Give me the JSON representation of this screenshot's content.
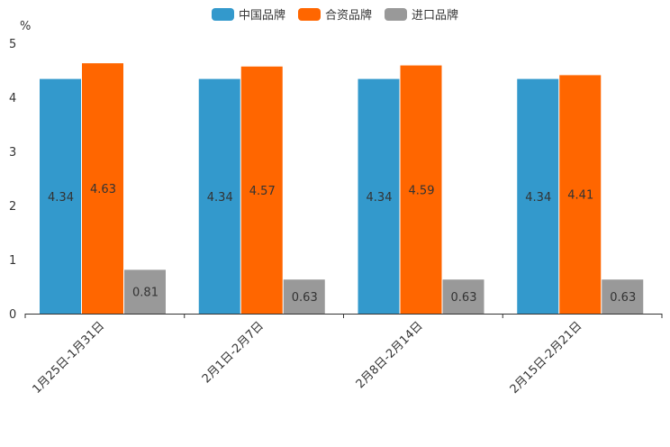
{
  "chart_data": {
    "type": "bar",
    "unit_label": "%",
    "categories": [
      "1月25日-1月31日",
      "2月1日-2月7日",
      "2月8日-2月14日",
      "2月15日-2月21日"
    ],
    "series": [
      {
        "name": "中国品牌",
        "color": "#3399cc",
        "values": [
          4.34,
          4.34,
          4.34,
          4.34
        ],
        "labels": [
          "4.34",
          "4.34",
          "4.34",
          "4.34"
        ]
      },
      {
        "name": "合资品牌",
        "color": "#ff6600",
        "values": [
          4.63,
          4.57,
          4.59,
          4.41
        ],
        "labels": [
          "4.63",
          "4.57",
          "4.59",
          "4.41"
        ]
      },
      {
        "name": "进口品牌",
        "color": "#999999",
        "values": [
          0.81,
          0.63,
          0.63,
          0.63
        ],
        "labels": [
          "0.81",
          "0.63",
          "0.63",
          "0.63"
        ]
      }
    ],
    "ylim": [
      0,
      5
    ],
    "yticks": [
      "0",
      "1",
      "2",
      "3",
      "4",
      "5"
    ],
    "legend_position": "top-center"
  }
}
